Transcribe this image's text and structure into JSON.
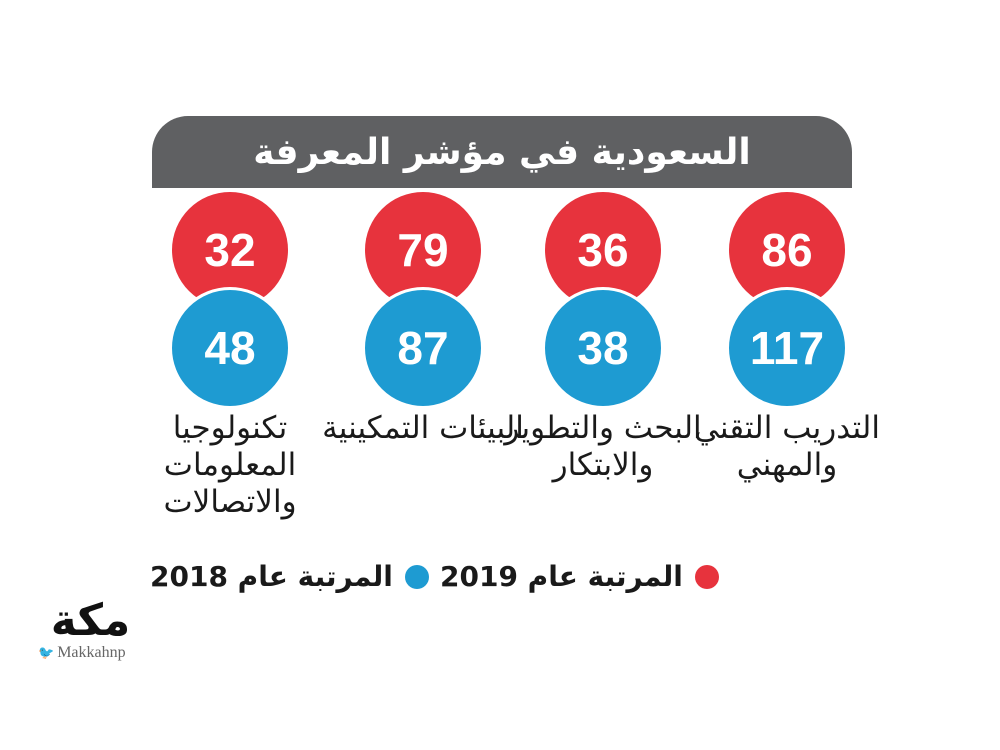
{
  "title": "السعودية في مؤشر المعرفة",
  "colors": {
    "r2019": "#e7333d",
    "r2018": "#1e9bd2",
    "header": "#5f6062"
  },
  "chart_data": {
    "type": "table",
    "title": "السعودية في مؤشر المعرفة",
    "categories": [
      "التدريب التقني والمهني",
      "البحث والتطوير والابتكار",
      "البيئات التمكينية",
      "تكنولوجيا المعلومات والاتصالات"
    ],
    "series": [
      {
        "name": "المرتبة عام 2019",
        "values": [
          86,
          36,
          79,
          32
        ]
      },
      {
        "name": "المرتبة عام 2018",
        "values": [
          117,
          38,
          87,
          48
        ]
      }
    ]
  },
  "columns": [
    {
      "label": "التدريب التقني والمهني",
      "v2019": "86",
      "v2018": "117"
    },
    {
      "label": "البحث والتطوير والابتكار",
      "v2019": "36",
      "v2018": "38"
    },
    {
      "label": "البيئات التمكينية",
      "v2019": "79",
      "v2018": "87"
    },
    {
      "label": "تكنولوجيا المعلومات والاتصالات",
      "v2019": "32",
      "v2018": "48"
    }
  ],
  "legend": {
    "r2019": "المرتبة عام 2019",
    "r2018": "المرتبة عام 2018"
  },
  "logo": {
    "name": "مكة",
    "handle": "Makkahnp"
  }
}
